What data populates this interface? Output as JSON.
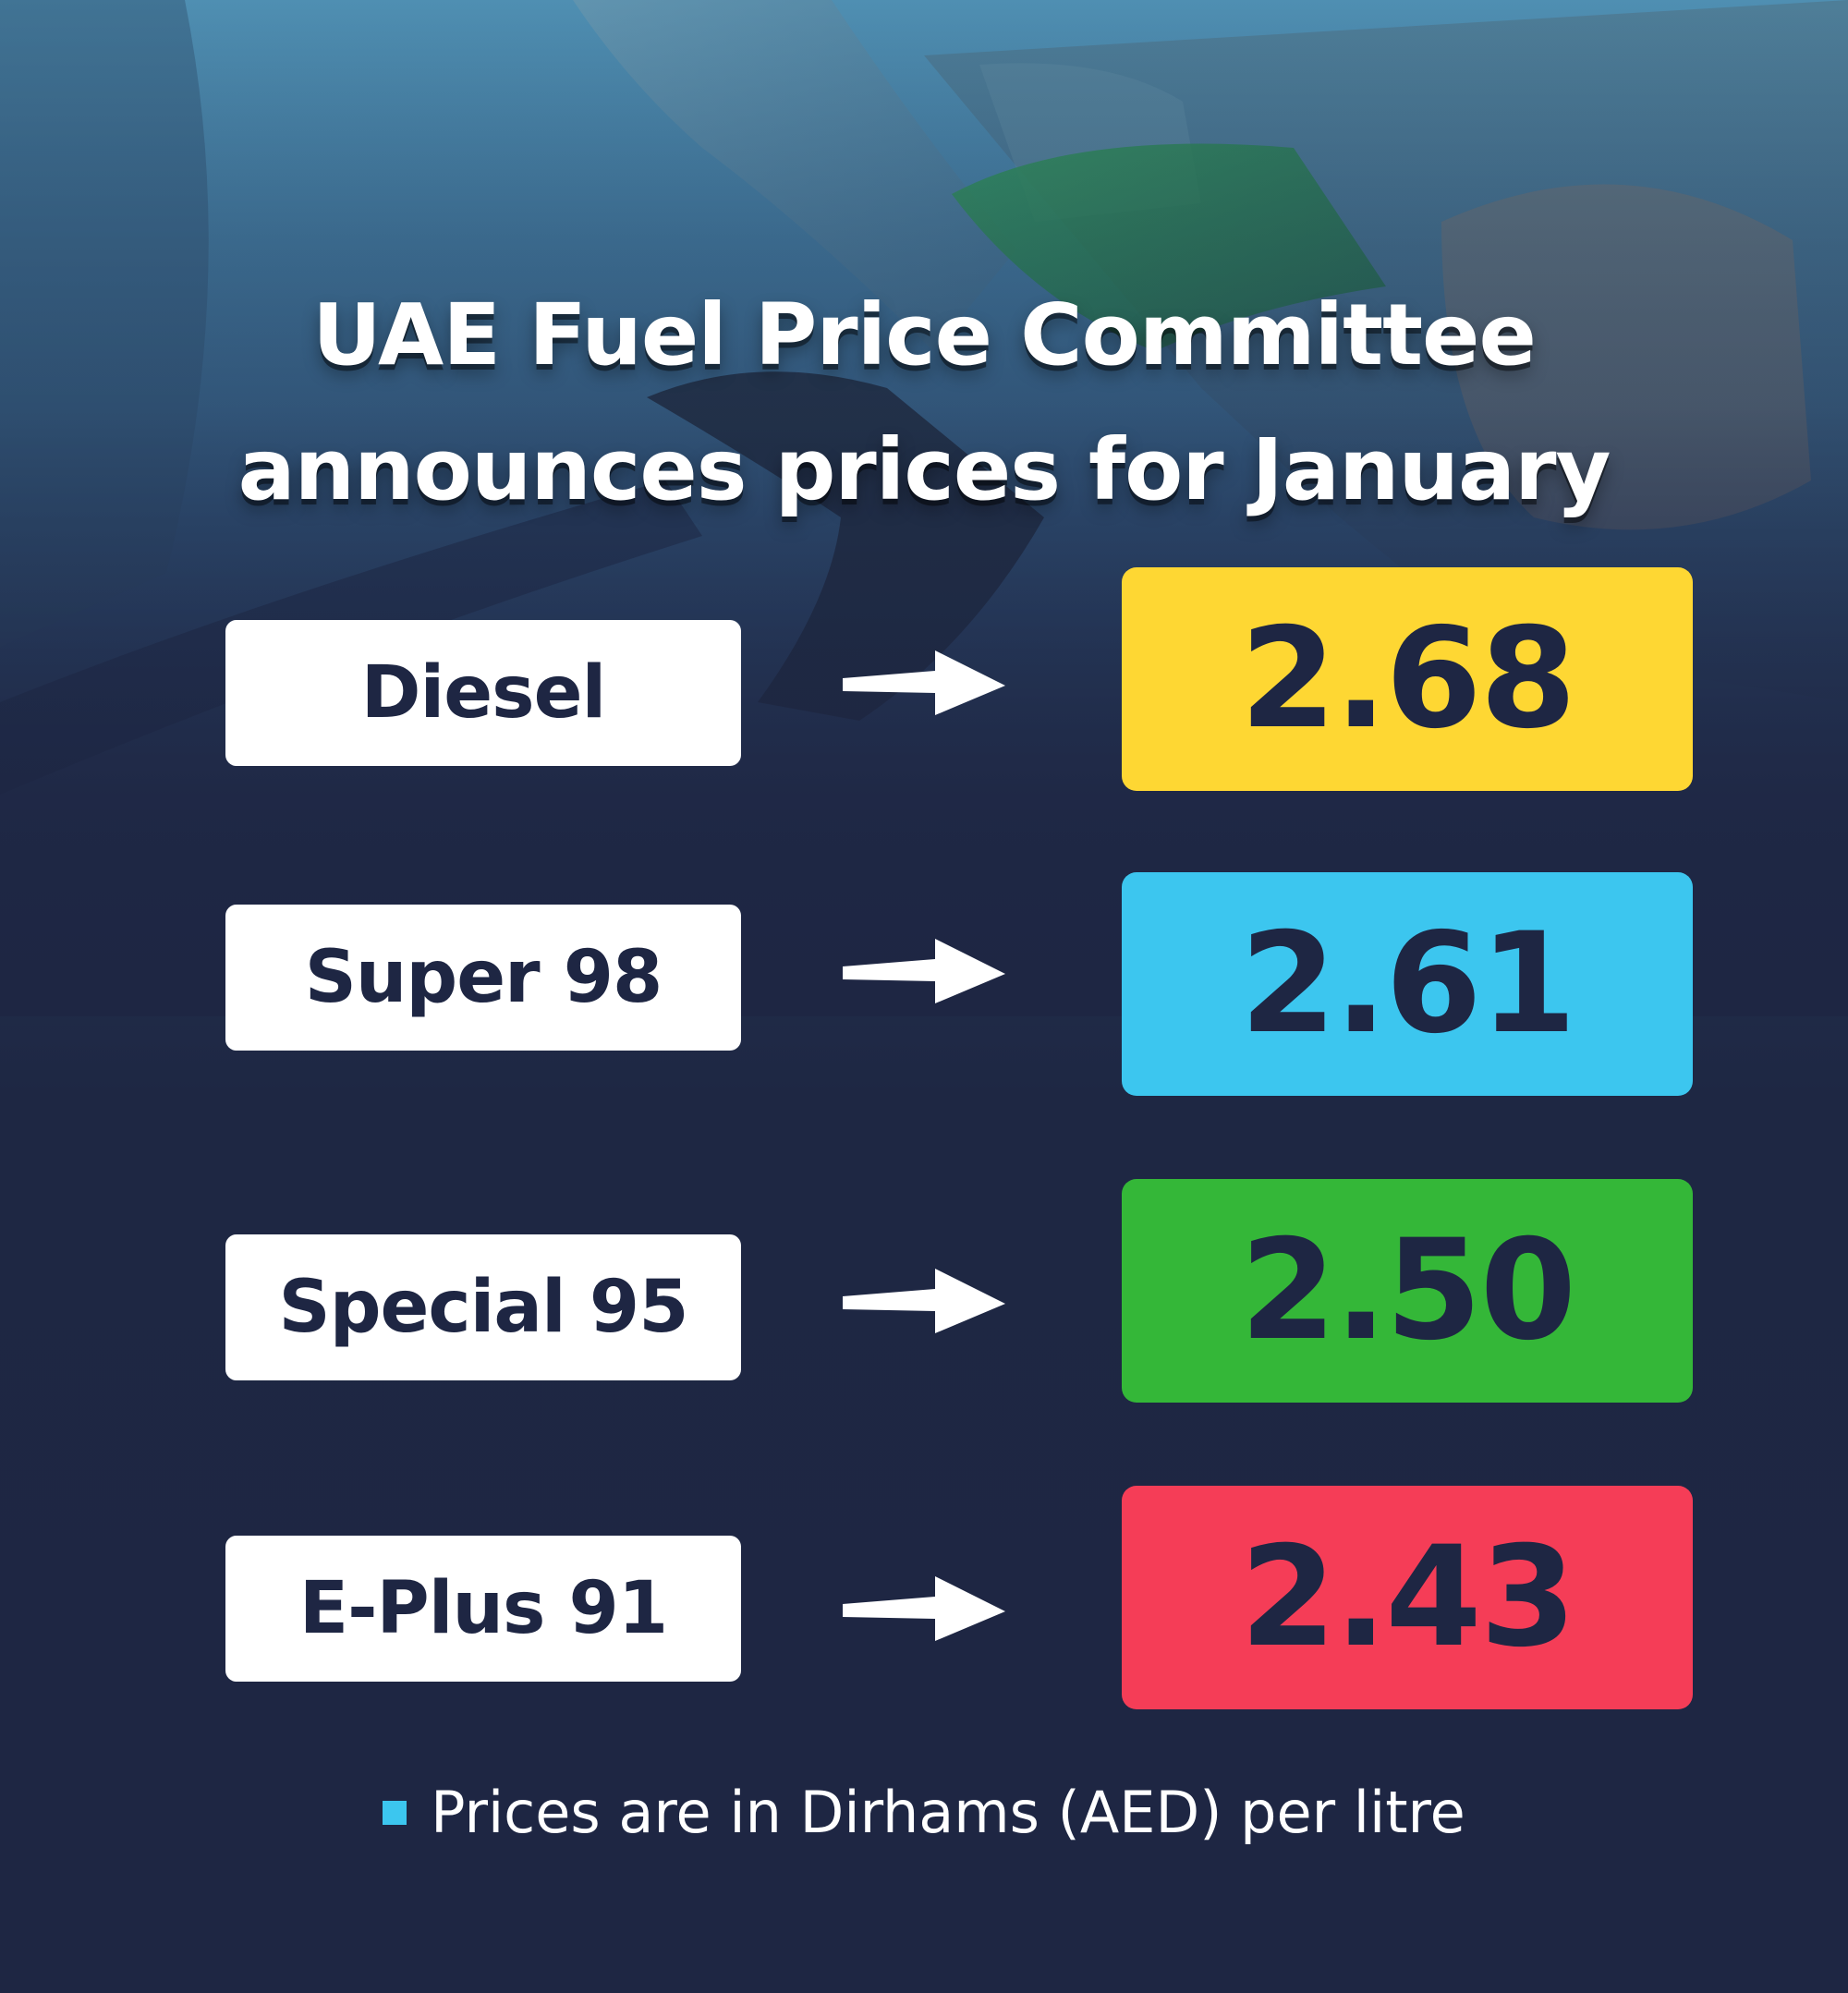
{
  "colors": {
    "background": "#1e2643",
    "diesel": "#fed733",
    "super98": "#3cc6ef",
    "special95": "#34b738",
    "eplus91": "#f53d57",
    "text_dark": "#1e2643",
    "bullet": "#3cc6ef"
  },
  "title": {
    "line1": "UAE Fuel Price Committee",
    "line2": "announces prices for January"
  },
  "fuels": [
    {
      "name": "Diesel",
      "price": "2.68"
    },
    {
      "name": "Super 98",
      "price": "2.61"
    },
    {
      "name": "Special 95",
      "price": "2.50"
    },
    {
      "name": "E-Plus 91",
      "price": "2.43"
    }
  ],
  "footnote": "Prices are in Dirhams (AED) per litre"
}
